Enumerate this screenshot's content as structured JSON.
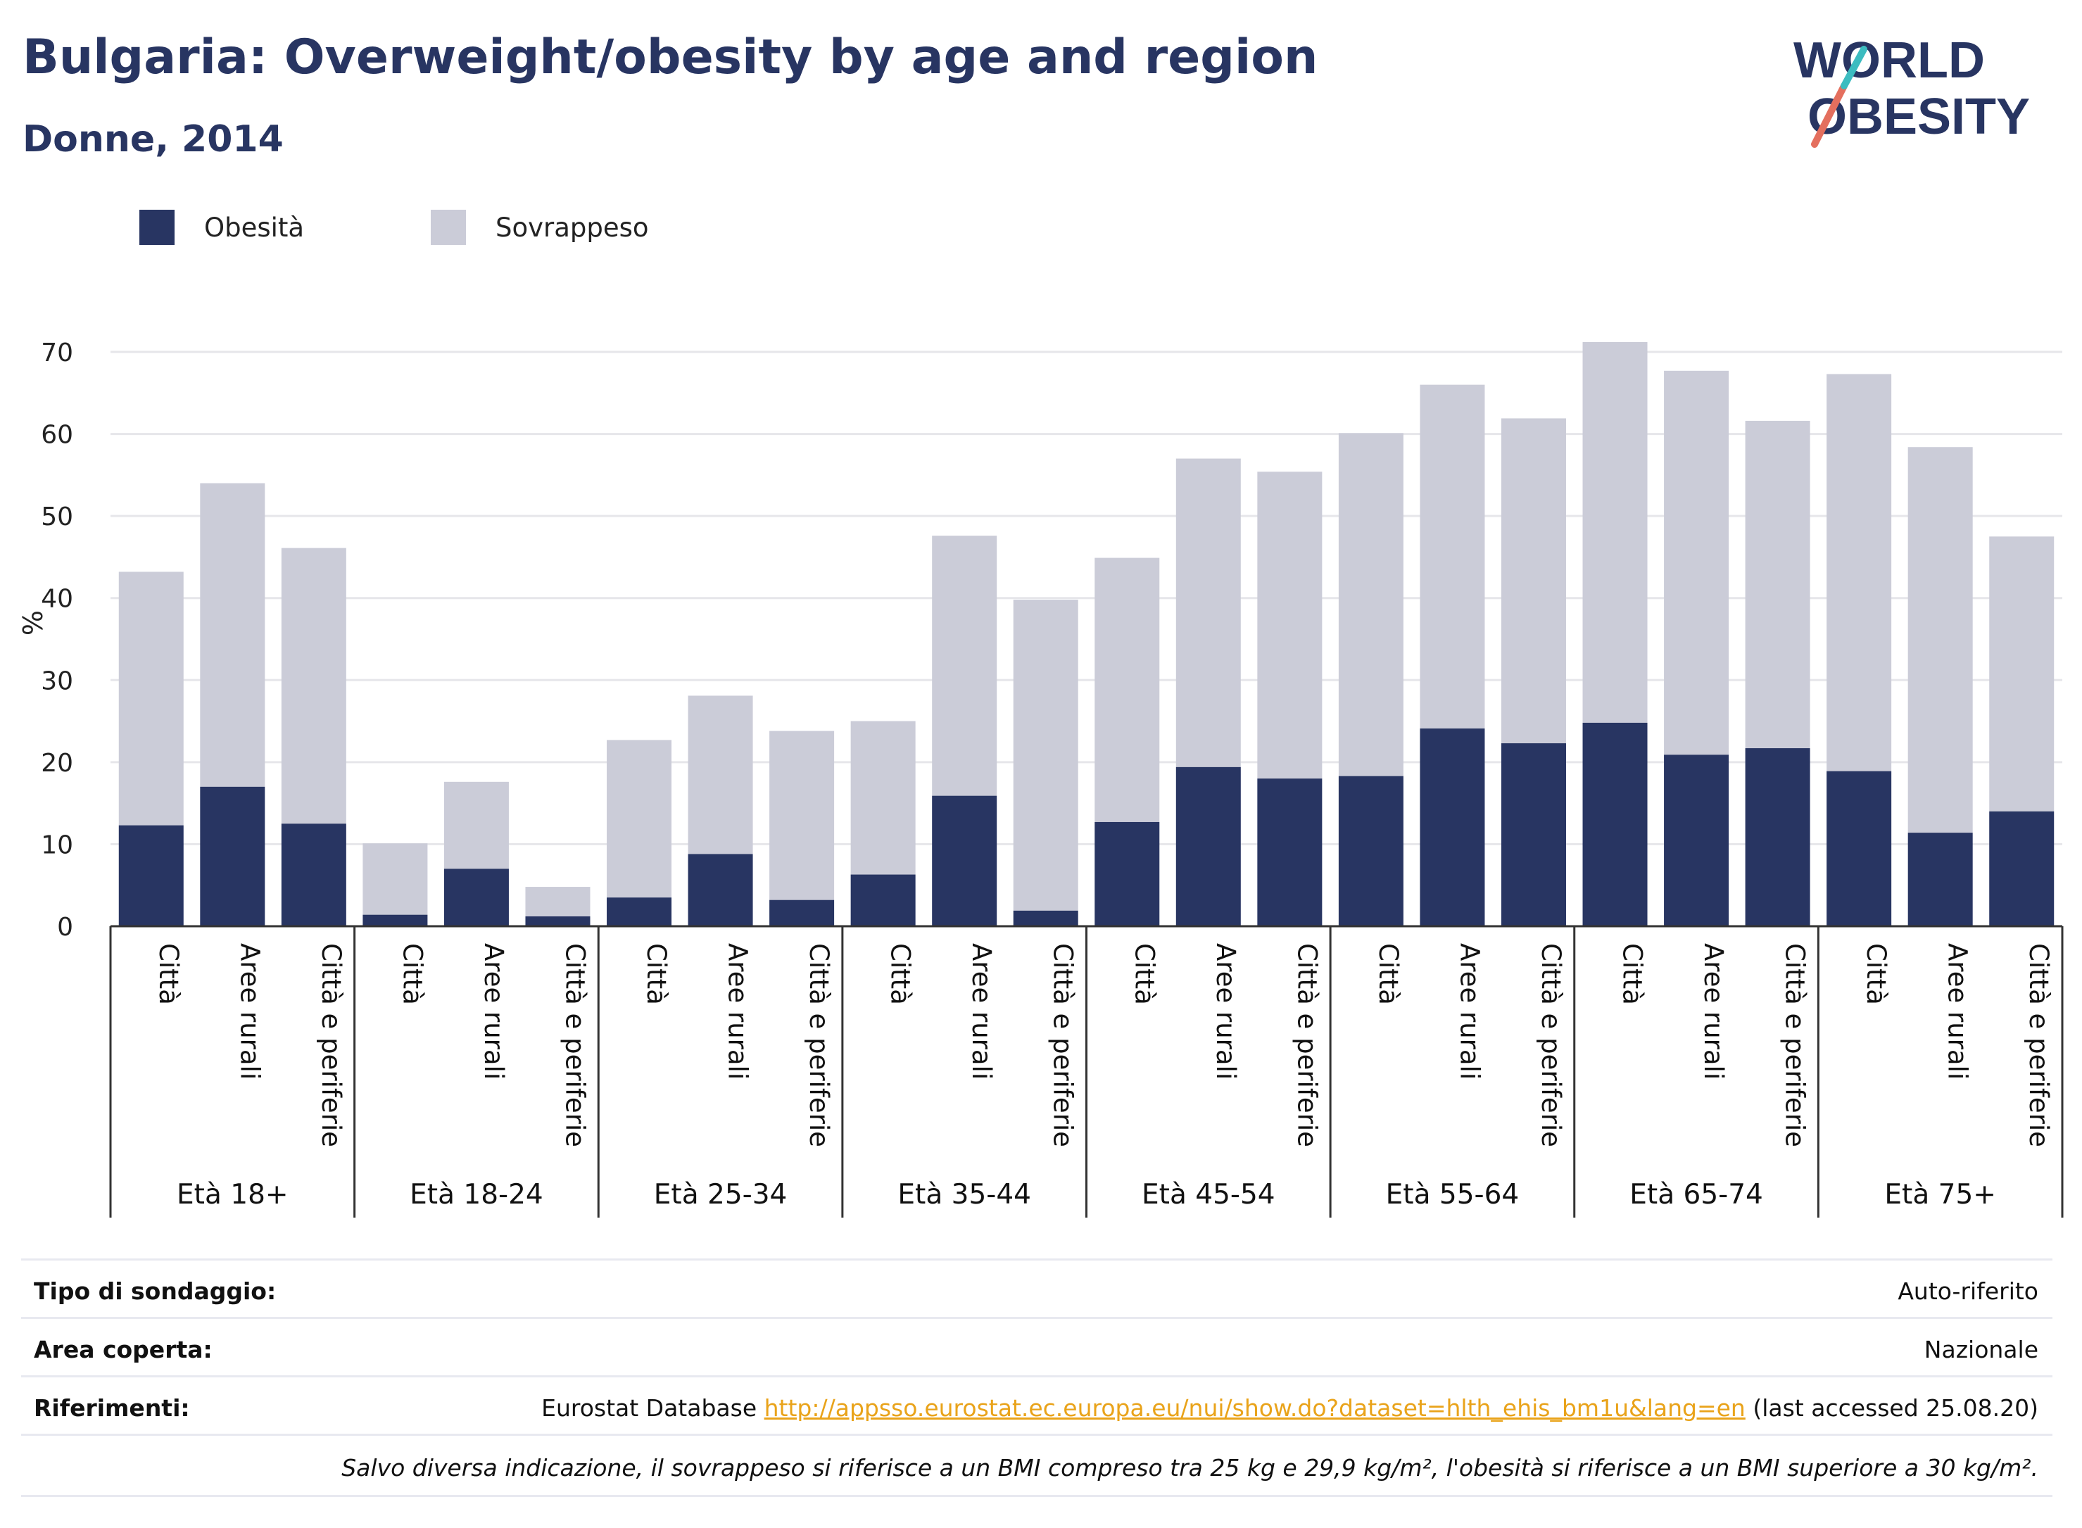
{
  "title": "Bulgaria: Overweight/obesity by age and region",
  "subtitle": "Donne, 2014",
  "logo": {
    "line1": "WORLD",
    "line2": "OBESITY",
    "accent_colors": [
      "#e46f5e",
      "#3cbcc0"
    ]
  },
  "colors": {
    "obesity": "#283562",
    "overweight": "#cbccd8",
    "text": "#283562"
  },
  "chart_data": {
    "type": "bar",
    "stacked": true,
    "ylabel": "%",
    "ylim": [
      0,
      72
    ],
    "yticks": [
      0,
      10,
      20,
      30,
      40,
      50,
      60,
      70
    ],
    "grid": true,
    "legend_position": "top-left",
    "legend": [
      {
        "name": "Obesità",
        "color": "#283562"
      },
      {
        "name": "Sovrappeso",
        "color": "#cbccd8"
      }
    ],
    "groups": [
      "Età 18+",
      "Età 18-24",
      "Età 25-34",
      "Età 35-44",
      "Età 45-54",
      "Età 55-64",
      "Età 65-74",
      "Età 75+"
    ],
    "subcategories": [
      "Città",
      "Aree rurali",
      "Città e periferie"
    ],
    "series": [
      {
        "name": "Obesità",
        "values": [
          12.3,
          17.0,
          12.5,
          1.4,
          7.0,
          1.2,
          3.5,
          8.8,
          3.2,
          6.3,
          15.9,
          1.9,
          12.7,
          19.4,
          18.0,
          18.3,
          24.1,
          22.3,
          24.8,
          20.9,
          21.7,
          18.9,
          11.4,
          14.0
        ]
      },
      {
        "name": "Sovrappeso",
        "values": [
          30.9,
          37.0,
          33.6,
          8.7,
          10.6,
          3.6,
          19.2,
          19.3,
          20.6,
          18.7,
          31.7,
          37.9,
          32.2,
          37.6,
          37.4,
          41.8,
          41.9,
          39.6,
          46.4,
          46.8,
          39.9,
          48.4,
          47.0,
          33.5
        ]
      }
    ]
  },
  "info": [
    {
      "label": "Tipo di sondaggio:",
      "value": "Auto-riferito"
    },
    {
      "label": "Area coperta:",
      "value": "Nazionale"
    },
    {
      "label": "Riferimenti:",
      "prefix": "Eurostat Database ",
      "link": "http://appsso.eurostat.ec.europa.eu/nui/show.do?dataset=hlth_ehis_bm1u&lang=en",
      "suffix": " (last accessed 25.08.20)"
    }
  ],
  "note": "Salvo diversa indicazione, il sovrappeso si riferisce a un BMI compreso tra 25 kg e 29,9 kg/m², l'obesità si riferisce a un BMI superiore a 30 kg/m²."
}
